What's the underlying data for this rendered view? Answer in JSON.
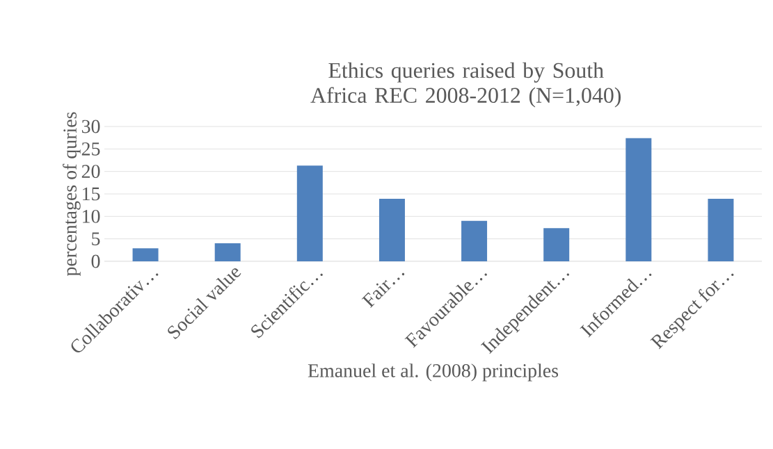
{
  "chart_data": {
    "type": "bar",
    "title": "Ethics queries raised by South Africa REC 2008-2012 (N=1,040)",
    "xlabel": "Emanuel et al. (2008) principles",
    "ylabel": "percentages of quries",
    "categories": [
      "Collaborativ…",
      "Social value",
      "Scientific…",
      "Fair…",
      "Favourable…",
      "Independent…",
      "Informed…",
      "Respect for…"
    ],
    "values": [
      2.9,
      4.0,
      21.3,
      13.9,
      9.0,
      7.4,
      27.4,
      13.9
    ],
    "color": "#4f81bd",
    "ylim": [
      0,
      30
    ],
    "yticks": [
      0,
      5,
      10,
      15,
      20,
      25,
      30
    ],
    "grid": "y"
  }
}
